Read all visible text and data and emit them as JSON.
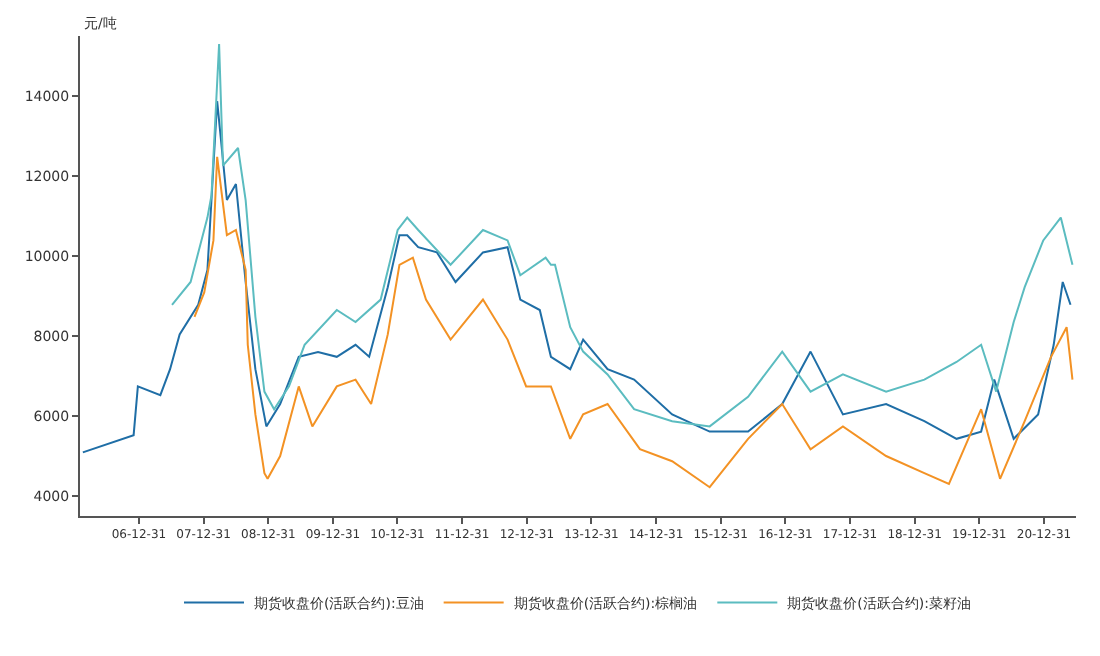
{
  "chart_data": {
    "type": "line",
    "ylabel": "元/吨",
    "xlim": [
      "2006-02-01",
      "2021-06-30"
    ],
    "xticks": [
      {
        "value": "2006-12-31",
        "label": "06-12-31"
      },
      {
        "value": "2007-12-31",
        "label": "07-12-31"
      },
      {
        "value": "2008-12-31",
        "label": "08-12-31"
      },
      {
        "value": "2009-12-31",
        "label": "09-12-31"
      },
      {
        "value": "2010-12-31",
        "label": "10-12-31"
      },
      {
        "value": "2011-12-31",
        "label": "11-12-31"
      },
      {
        "value": "2012-12-31",
        "label": "12-12-31"
      },
      {
        "value": "2013-12-31",
        "label": "13-12-31"
      },
      {
        "value": "2014-12-31",
        "label": "14-12-31"
      },
      {
        "value": "2015-12-31",
        "label": "15-12-31"
      },
      {
        "value": "2016-12-31",
        "label": "16-12-31"
      },
      {
        "value": "2017-12-31",
        "label": "17-12-31"
      },
      {
        "value": "2018-12-31",
        "label": "18-12-31"
      },
      {
        "value": "2019-12-31",
        "label": "19-12-31"
      },
      {
        "value": "2020-12-31",
        "label": "20-12-31"
      }
    ],
    "ylim": [
      3500,
      15500
    ],
    "yticks": [
      4000,
      6000,
      8000,
      10000,
      12000,
      14000
    ],
    "legend": "bottom",
    "line_style": "solid",
    "marker": "none",
    "series": [
      {
        "name": "期货收盘价(活跃合约):豆油",
        "color": "#1f6ea6",
        "x": [
          "2006-02-17",
          "2006-12-01",
          "2006-12-25",
          "2007-05-01",
          "2007-06-25",
          "2007-08-18",
          "2007-12-01",
          "2008-01-22",
          "2008-03-17",
          "2008-05-11",
          "2008-07-01",
          "2008-08-25",
          "2008-10-19",
          "2008-12-20",
          "2009-03-08",
          "2009-06-21",
          "2009-10-08",
          "2010-01-22",
          "2010-05-08",
          "2010-07-24",
          "2010-11-06",
          "2011-01-11",
          "2011-02-24",
          "2011-04-27",
          "2011-08-11",
          "2011-11-24",
          "2012-04-27",
          "2012-09-13",
          "2012-11-24",
          "2013-03-14",
          "2013-05-16",
          "2013-09-02",
          "2013-11-14",
          "2014-04-01",
          "2014-08-29",
          "2015-04-01",
          "2015-10-30",
          "2016-06-03",
          "2016-12-13",
          "2017-05-22",
          "2017-11-21",
          "2018-07-23",
          "2019-02-24",
          "2019-08-25",
          "2020-01-11",
          "2020-03-25",
          "2020-07-13",
          "2020-11-28",
          "2021-02-24",
          "2021-04-16",
          "2021-05-30"
        ],
        "values": [
          5090,
          5520,
          6740,
          6520,
          7170,
          8040,
          8780,
          9650,
          13870,
          11400,
          11800,
          9350,
          7170,
          5740,
          6300,
          7480,
          7600,
          7480,
          7780,
          7480,
          9220,
          10520,
          10520,
          10220,
          10090,
          9350,
          10090,
          10220,
          8910,
          8650,
          7480,
          7170,
          7910,
          7170,
          6910,
          6040,
          5610,
          5610,
          6300,
          7610,
          6040,
          6300,
          5870,
          5430,
          5610,
          6910,
          5430,
          6040,
          7780,
          9350,
          8780
        ]
      },
      {
        "name": "期货收盘价(活跃合约):棕榈油",
        "color": "#f39224",
        "x": [
          "2007-11-10",
          "2008-01-04",
          "2008-02-25",
          "2008-03-17",
          "2008-05-11",
          "2008-07-01",
          "2008-08-25",
          "2008-09-06",
          "2008-10-19",
          "2008-12-09",
          "2008-12-27",
          "2009-03-08",
          "2009-06-21",
          "2009-09-06",
          "2010-01-22",
          "2010-05-08",
          "2010-08-04",
          "2010-11-06",
          "2011-01-11",
          "2011-03-28",
          "2011-06-10",
          "2011-10-27",
          "2012-04-27",
          "2012-09-13",
          "2012-12-27",
          "2013-05-16",
          "2013-09-02",
          "2013-11-14",
          "2014-04-01",
          "2014-10-01",
          "2015-04-01",
          "2015-10-30",
          "2016-06-03",
          "2016-12-13",
          "2017-05-22",
          "2017-11-21",
          "2018-07-23",
          "2019-02-24",
          "2019-07-13",
          "2020-01-11",
          "2020-04-27",
          "2020-09-13",
          "2021-02-09",
          "2021-05-08",
          "2021-06-10"
        ],
        "values": [
          8480,
          9090,
          10390,
          12480,
          10520,
          10650,
          9650,
          7780,
          6040,
          4570,
          4430,
          5000,
          6740,
          5740,
          6740,
          6910,
          6300,
          8040,
          9780,
          9960,
          8910,
          7910,
          8910,
          7910,
          6740,
          6740,
          5430,
          6040,
          6300,
          5170,
          4870,
          4220,
          5430,
          6300,
          5170,
          5740,
          5000,
          4570,
          4300,
          6170,
          4430,
          5870,
          7480,
          8220,
          6910
        ]
      },
      {
        "name": "期货收盘价(活跃合约):菜籽油",
        "color": "#5bbcc0",
        "x": [
          "2007-07-06",
          "2007-10-19",
          "2008-01-22",
          "2008-02-14",
          "2008-03-28",
          "2008-04-19",
          "2008-07-13",
          "2008-08-25",
          "2008-10-19",
          "2008-12-09",
          "2009-02-02",
          "2009-04-27",
          "2009-07-24",
          "2010-01-22",
          "2010-05-08",
          "2010-09-27",
          "2011-01-01",
          "2011-02-24",
          "2011-04-27",
          "2011-10-27",
          "2012-04-27",
          "2012-09-13",
          "2012-11-24",
          "2013-04-16",
          "2013-05-16",
          "2013-06-08",
          "2013-09-02",
          "2013-11-14",
          "2014-04-01",
          "2014-08-29",
          "2015-04-01",
          "2015-10-30",
          "2016-06-03",
          "2016-12-13",
          "2017-05-22",
          "2017-11-21",
          "2018-07-23",
          "2019-02-24",
          "2019-08-25",
          "2020-01-11",
          "2020-04-05",
          "2020-07-13",
          "2020-09-13",
          "2020-12-27",
          "2021-04-05",
          "2021-06-10"
        ],
        "values": [
          8780,
          9350,
          10960,
          11520,
          15300,
          12260,
          12700,
          11400,
          8480,
          6610,
          6170,
          6740,
          7780,
          8650,
          8350,
          8910,
          10650,
          10960,
          10650,
          9780,
          10650,
          10390,
          9520,
          9960,
          9780,
          9780,
          8220,
          7610,
          7040,
          6170,
          5870,
          5740,
          6480,
          7610,
          6610,
          7040,
          6610,
          6910,
          7350,
          7780,
          6610,
          8350,
          9220,
          10390,
          10960,
          9780
        ]
      }
    ]
  }
}
